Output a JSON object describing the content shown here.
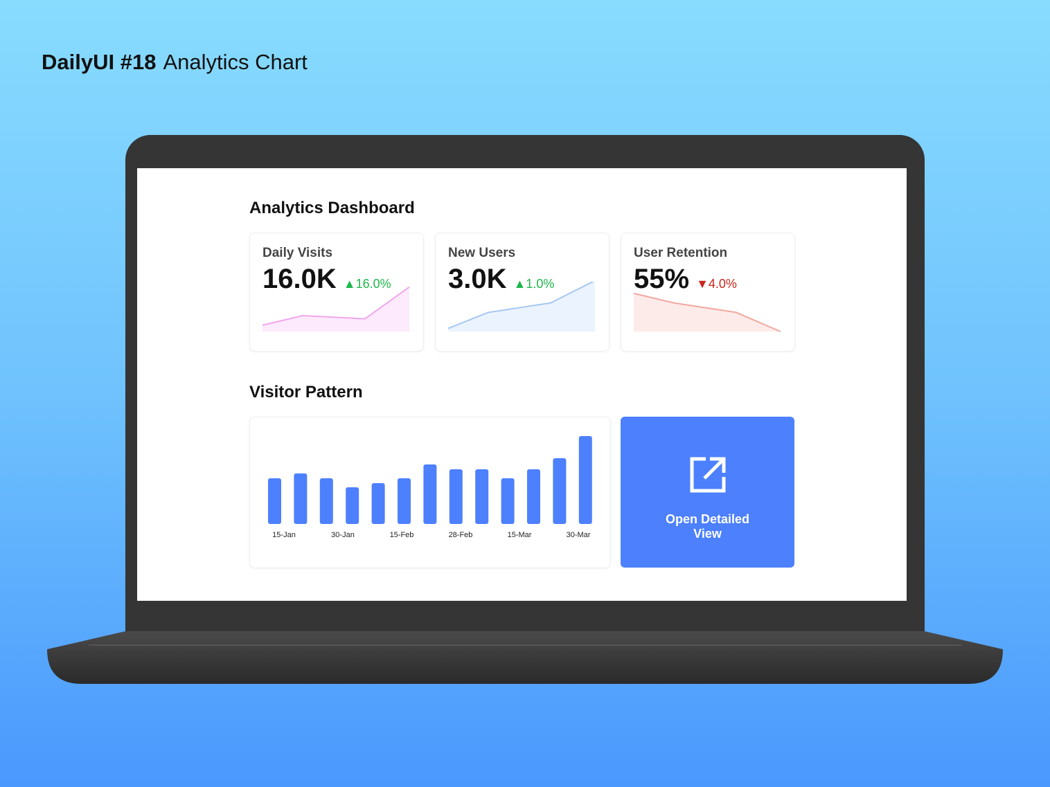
{
  "shot_title": {
    "bold": "DailyUI #18",
    "rest": "Analytics Chart"
  },
  "dashboard": {
    "title": "Analytics Dashboard",
    "kpis": [
      {
        "label": "Daily Visits",
        "value": "16.0K",
        "change": "16.0%",
        "direction": "up",
        "color": "#f0a6ec",
        "fill": "#fdeafc",
        "trend": [
          2,
          5,
          4,
          14
        ]
      },
      {
        "label": "New Users",
        "value": "3.0K",
        "change": "1.0%",
        "direction": "up",
        "color": "#a6c8f3",
        "fill": "#ebf3fe",
        "trend": [
          1,
          6,
          9,
          16
        ]
      },
      {
        "label": "User Retention",
        "value": "55%",
        "change": "4.0%",
        "direction": "down",
        "color": "#f1a8a0",
        "fill": "#fdebea",
        "trend": [
          12,
          9,
          6,
          0
        ]
      }
    ],
    "up_color": "#1db74a",
    "down_color": "#c8261c",
    "section_title": "Visitor Pattern",
    "cta": {
      "label": "Open Detailed View",
      "icon": "external-link-icon"
    }
  },
  "chart_data": {
    "type": "bar",
    "values": [
      66,
      73,
      66,
      53,
      59,
      66,
      86,
      79,
      79,
      66,
      79,
      95,
      127
    ],
    "tick_labels": [
      "15-Jan",
      "30-Jan",
      "15-Feb",
      "28-Feb",
      "15-Mar",
      "30-Mar"
    ],
    "bar_color": "#4d80fc",
    "grid": false
  }
}
